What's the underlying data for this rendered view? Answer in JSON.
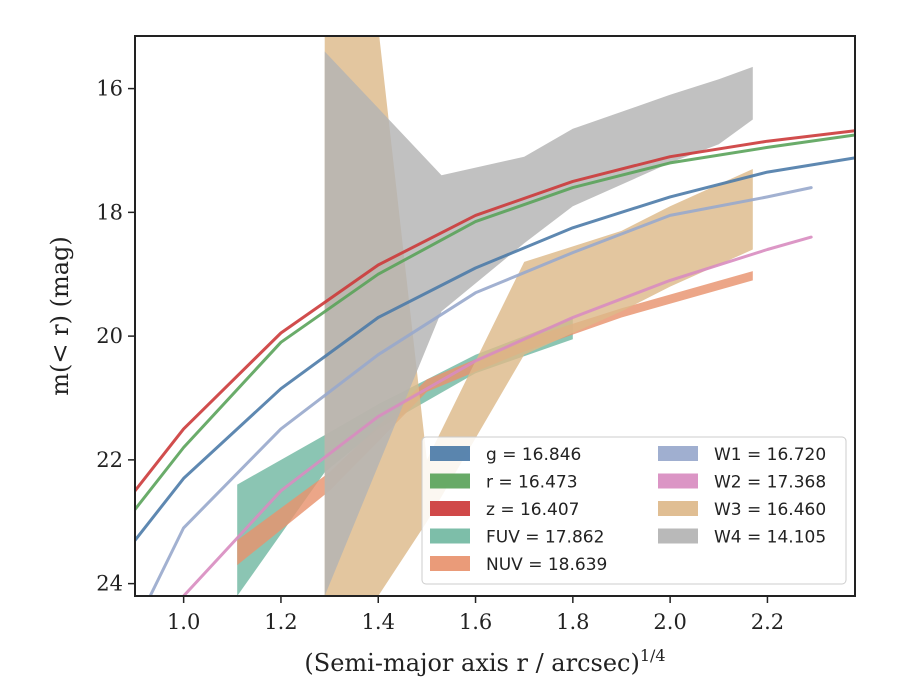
{
  "chart_data": {
    "type": "line",
    "xlabel": "(Semi-major axis r / arcsec)",
    "xlabel_superscript": "1/4",
    "ylabel": "m(< r) (mag)",
    "xlim": [
      0.9,
      2.38
    ],
    "ylim": [
      24.2,
      15.15
    ],
    "y_inverted": true,
    "x_ticks": [
      "1.0",
      "1.2",
      "1.4",
      "1.6",
      "1.8",
      "2.0",
      "2.2"
    ],
    "y_ticks": [
      "16",
      "18",
      "20",
      "22",
      "24"
    ],
    "grid": false,
    "legend_position": "lower-right",
    "series": [
      {
        "name": "g = 16.846",
        "color": "#4c7ba8",
        "kind": "line",
        "x": [
          0.9,
          1.0,
          1.2,
          1.4,
          1.6,
          1.8,
          2.0,
          2.2,
          2.38
        ],
        "y": [
          23.3,
          22.3,
          20.85,
          19.7,
          18.9,
          18.25,
          17.75,
          17.35,
          17.12
        ]
      },
      {
        "name": "r = 16.473",
        "color": "#5aa35a",
        "kind": "line",
        "x": [
          0.9,
          1.0,
          1.2,
          1.4,
          1.6,
          1.8,
          2.0,
          2.2,
          2.38
        ],
        "y": [
          22.8,
          21.8,
          20.1,
          19.0,
          18.15,
          17.6,
          17.2,
          16.95,
          16.75
        ]
      },
      {
        "name": "z = 16.407",
        "color": "#cc3a3a",
        "kind": "line",
        "x": [
          0.9,
          1.0,
          1.2,
          1.4,
          1.6,
          1.8,
          2.0,
          2.2,
          2.38
        ],
        "y": [
          22.5,
          21.5,
          19.95,
          18.85,
          18.05,
          17.5,
          17.1,
          16.85,
          16.68
        ]
      },
      {
        "name": "FUV = 17.862",
        "color": "#72b8a2",
        "kind": "band",
        "x": [
          1.11,
          1.29,
          1.4,
          1.6,
          1.8
        ],
        "y_low": [
          24.2,
          22.2,
          21.5,
          20.6,
          20.05
        ],
        "y_high": [
          22.4,
          21.6,
          21.1,
          20.3,
          19.7
        ]
      },
      {
        "name": "NUV = 18.639",
        "color": "#e8936e",
        "kind": "band",
        "x": [
          1.11,
          1.3,
          1.5,
          1.7,
          1.9,
          2.17
        ],
        "y_low": [
          23.7,
          22.5,
          20.9,
          20.25,
          19.7,
          19.1
        ],
        "y_high": [
          23.3,
          22.2,
          20.7,
          20.05,
          19.55,
          18.95
        ]
      },
      {
        "name": "W1 = 16.720",
        "color": "#98a8cc",
        "kind": "line",
        "x": [
          0.9,
          1.0,
          1.2,
          1.4,
          1.6,
          1.8,
          2.0,
          2.2,
          2.29
        ],
        "y": [
          24.7,
          23.1,
          21.5,
          20.3,
          19.3,
          18.65,
          18.05,
          17.75,
          17.6
        ]
      },
      {
        "name": "W2 = 17.368",
        "color": "#d88cc0",
        "kind": "line",
        "x": [
          1.0,
          1.2,
          1.4,
          1.6,
          1.8,
          2.0,
          2.2,
          2.29
        ],
        "y": [
          24.2,
          22.5,
          21.3,
          20.4,
          19.7,
          19.1,
          18.6,
          18.4
        ]
      },
      {
        "name": "W3 = 16.460",
        "color": "#ddb98a",
        "kind": "band",
        "x": [
          1.29,
          1.4,
          1.5,
          1.7,
          1.9,
          2.0,
          2.17
        ],
        "y_low": [
          24.2,
          24.2,
          23.0,
          20.3,
          19.6,
          19.2,
          18.6
        ],
        "y_high": [
          15.0,
          15.0,
          22.0,
          18.8,
          18.3,
          17.9,
          17.3
        ]
      },
      {
        "name": "W4 = 14.105",
        "color": "#b3b3b3",
        "kind": "band",
        "x": [
          1.29,
          1.53,
          1.7,
          1.8,
          2.0,
          2.1,
          2.17
        ],
        "y_low": [
          24.2,
          19.6,
          18.5,
          17.9,
          17.2,
          16.9,
          16.5
        ],
        "y_high": [
          15.4,
          17.4,
          17.1,
          16.65,
          16.1,
          15.85,
          15.65
        ]
      }
    ]
  }
}
